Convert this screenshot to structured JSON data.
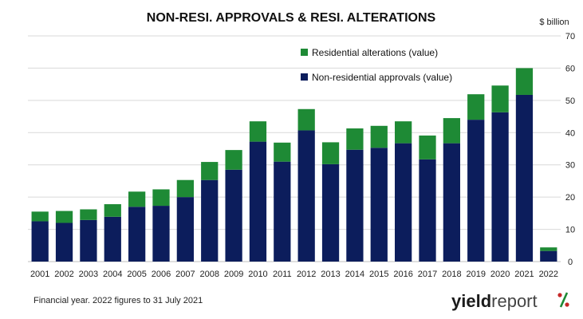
{
  "chart_data": {
    "type": "bar",
    "stacked": true,
    "title": "NON-RESI. APPROVALS & RESI. ALTERATIONS",
    "y_unit": "$ billion",
    "ylim": [
      0,
      70
    ],
    "yticks": [
      0,
      10,
      20,
      30,
      40,
      50,
      60,
      70
    ],
    "grid": true,
    "legend_position": "top-center",
    "categories": [
      "2001",
      "2002",
      "2003",
      "2004",
      "2005",
      "2006",
      "2007",
      "2008",
      "2009",
      "2010",
      "2011",
      "2012",
      "2013",
      "2014",
      "2015",
      "2016",
      "2017",
      "2018",
      "2019",
      "2020",
      "2021",
      "2022"
    ],
    "series": [
      {
        "name": "Non-residential approvals (value)",
        "color": "#0c1d5c",
        "values": [
          12.5,
          12.0,
          12.9,
          13.9,
          17.0,
          17.3,
          20.0,
          25.3,
          28.5,
          37.2,
          31.0,
          40.7,
          30.2,
          34.7,
          35.3,
          36.7,
          31.7,
          36.7,
          44.0,
          46.3,
          51.7,
          3.3
        ]
      },
      {
        "name": "Residential alterations (value)",
        "color": "#1e8a35",
        "values": [
          3.0,
          3.7,
          3.3,
          3.9,
          4.7,
          5.1,
          5.3,
          5.6,
          6.1,
          6.3,
          5.9,
          6.6,
          6.8,
          6.6,
          6.8,
          6.8,
          7.4,
          7.8,
          7.9,
          8.3,
          8.3,
          1.1
        ]
      }
    ],
    "legend": [
      {
        "label": "Residential alterations (value)",
        "color": "#1e8a35"
      },
      {
        "label": "Non-residential approvals (value)",
        "color": "#0c1d5c"
      }
    ],
    "note": "Financial year. 2022 figures to 31 July 2021",
    "gridline_color": "#d9d9d9"
  },
  "logo": {
    "part1": "yield",
    "part2": "report",
    "accent_color": "#c62828",
    "accent2_color": "#1e8a35"
  }
}
